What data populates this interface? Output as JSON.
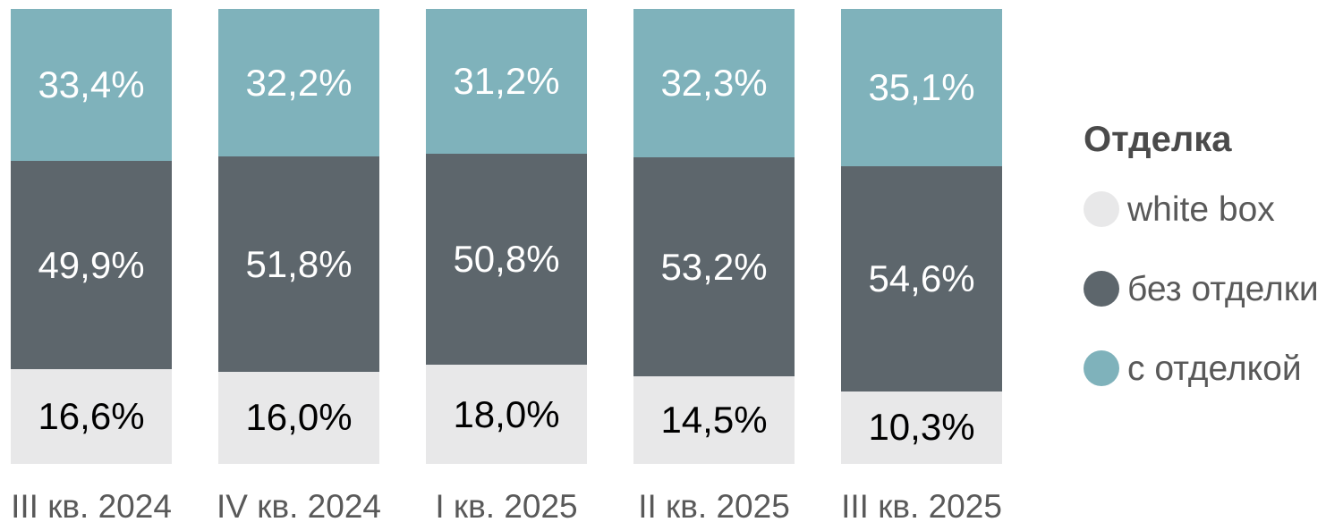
{
  "chart_data": {
    "type": "bar",
    "variant": "100-percent-stacked-column",
    "title": "",
    "categories": [
      "III кв. 2024",
      "IV кв. 2024",
      "I кв. 2025",
      "II кв. 2025",
      "III кв. 2025"
    ],
    "series": [
      {
        "id": "white-box",
        "name": "white box",
        "color": "#e8e8e9",
        "label_color": "#000000",
        "values": [
          16.6,
          16.0,
          18.0,
          14.5,
          10.3
        ],
        "labels": [
          "16,6%",
          "16,0%",
          "18,0%",
          "14,5%",
          "10,3%"
        ]
      },
      {
        "id": "bez-otdelki",
        "name": "без отделки",
        "color": "#5d666c",
        "label_color": "#ffffff",
        "values": [
          49.9,
          51.8,
          50.8,
          53.2,
          54.6
        ],
        "labels": [
          "49,9%",
          "51,8%",
          "50,8%",
          "53,2%",
          "54,6%"
        ]
      },
      {
        "id": "s-otdelkoy",
        "name": "с отделкой",
        "color": "#7fb2bb",
        "label_color": "#ffffff",
        "values": [
          33.4,
          32.2,
          31.2,
          32.3,
          35.1
        ],
        "labels": [
          "33,4%",
          "32,2%",
          "31,2%",
          "32,3%",
          "35,1%"
        ]
      }
    ],
    "stack_order_top_to_bottom": [
      "s-otdelkoy",
      "bez-otdelki",
      "white-box"
    ],
    "ylim": [
      0,
      100
    ],
    "grid": false,
    "axes": {
      "x_labels_color": "#595959",
      "y_axis_visible": false
    },
    "legend": {
      "position": "right",
      "title": "Отделка",
      "title_color": "#4a4a4a",
      "text_color": "#595959",
      "items": [
        {
          "label": "white box",
          "color": "#e8e8e9"
        },
        {
          "label": "без отделки",
          "color": "#5d666c"
        },
        {
          "label": "с отделкой",
          "color": "#7fb2bb"
        }
      ]
    }
  }
}
